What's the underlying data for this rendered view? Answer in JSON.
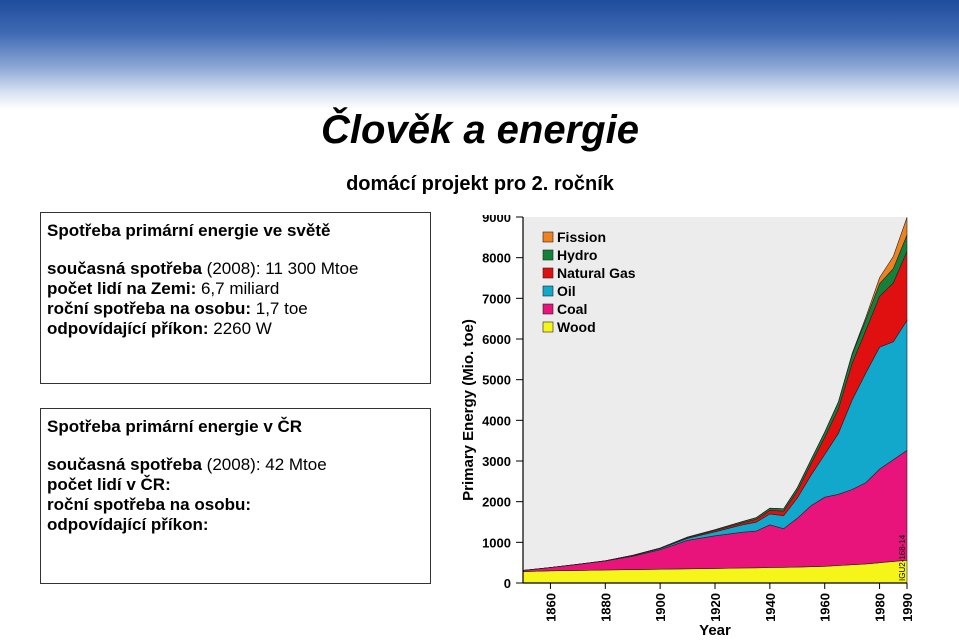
{
  "header": {
    "title": "Člověk a energie",
    "subtitle": "domácí projekt pro 2. ročník"
  },
  "world_panel": {
    "heading": "Spotřeba primární energie ve světě",
    "rows": [
      {
        "label": "současná spotřeba",
        "value": " (2008): 11 300 Mtoe"
      },
      {
        "label": "počet lidí na Zemi:",
        "value": " 6,7 miliard"
      },
      {
        "label": "roční spotřeba na osobu:",
        "value": " 1,7 toe"
      },
      {
        "label": "odpovídající příkon:",
        "value": " 2260 W"
      }
    ]
  },
  "cz_panel": {
    "heading": "Spotřeba primární energie v ČR",
    "rows": [
      {
        "label": "současná spotřeba",
        "value": " (2008): 42 Mtoe"
      },
      {
        "label": "počet lidí v ČR:",
        "value": ""
      },
      {
        "label": "roční spotřeba na osobu:",
        "value": ""
      },
      {
        "label": "odpovídající příkon:",
        "value": ""
      }
    ]
  },
  "chart_data": {
    "type": "area",
    "stacked": true,
    "xlabel": "Year",
    "ylabel": "Primary Energy (Mio. toe)",
    "xlim": [
      1850,
      1990
    ],
    "ylim": [
      0,
      9000
    ],
    "xticks": [
      "1860",
      "1880",
      "1900",
      "1920",
      "1940",
      "1960",
      "1980",
      "1990"
    ],
    "yticks": [
      "0",
      "1000",
      "2000",
      "3000",
      "4000",
      "5000",
      "6000",
      "7000",
      "8000",
      "9000"
    ],
    "legend_position": "top-left",
    "corner_note": "IGU2-168-14",
    "x": [
      1850,
      1860,
      1870,
      1880,
      1890,
      1900,
      1910,
      1920,
      1930,
      1935,
      1940,
      1945,
      1950,
      1955,
      1960,
      1965,
      1970,
      1975,
      1980,
      1985,
      1990
    ],
    "series": [
      {
        "name": "Wood",
        "color": "#f5f51a",
        "values": [
          280,
          300,
          310,
          320,
          330,
          340,
          350,
          360,
          370,
          375,
          380,
          385,
          390,
          400,
          410,
          430,
          450,
          470,
          500,
          530,
          560
        ]
      },
      {
        "name": "Coal",
        "color": "#e8147c",
        "values": [
          30,
          80,
          150,
          220,
          330,
          480,
          700,
          800,
          880,
          900,
          1050,
          950,
          1200,
          1500,
          1700,
          1750,
          1850,
          2000,
          2300,
          2500,
          2700
        ]
      },
      {
        "name": "Oil",
        "color": "#12a8cc",
        "values": [
          0,
          0,
          0,
          5,
          15,
          25,
          50,
          100,
          180,
          220,
          270,
          320,
          500,
          750,
          1050,
          1500,
          2200,
          2700,
          3000,
          2900,
          3200
        ]
      },
      {
        "name": "Natural Gas",
        "color": "#e01010",
        "values": [
          0,
          0,
          0,
          0,
          5,
          10,
          20,
          30,
          50,
          70,
          90,
          110,
          170,
          280,
          420,
          600,
          900,
          1050,
          1250,
          1450,
          1700
        ]
      },
      {
        "name": "Hydro",
        "color": "#15803a",
        "values": [
          0,
          0,
          0,
          0,
          0,
          5,
          10,
          20,
          30,
          40,
          50,
          60,
          80,
          100,
          130,
          170,
          220,
          260,
          310,
          350,
          400
        ]
      },
      {
        "name": "Fission",
        "color": "#f0821e",
        "values": [
          0,
          0,
          0,
          0,
          0,
          0,
          0,
          0,
          0,
          0,
          0,
          0,
          0,
          0,
          0,
          5,
          20,
          60,
          150,
          300,
          430
        ]
      }
    ]
  }
}
